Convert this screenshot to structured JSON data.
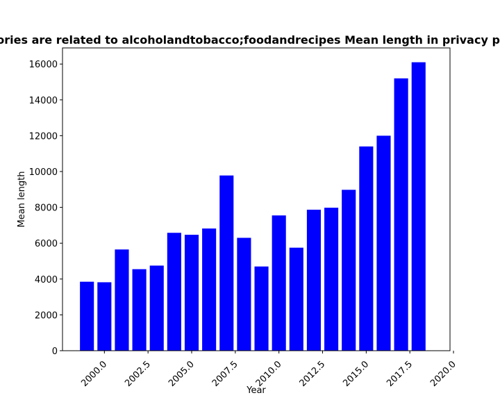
{
  "chart_data": {
    "type": "bar",
    "title": "Categories are related to alcoholandtobacco;foodandrecipes Mean length in privacy policies",
    "xlabel": "Year",
    "ylabel": "Mean length",
    "x": [
      1999,
      2000,
      2001,
      2002,
      2003,
      2004,
      2005,
      2006,
      2007,
      2008,
      2009,
      2010,
      2011,
      2012,
      2013,
      2014,
      2015,
      2016,
      2017,
      2018
    ],
    "values": [
      3850,
      3820,
      5650,
      4550,
      4750,
      6580,
      6470,
      6820,
      9780,
      6300,
      4700,
      7550,
      5750,
      7870,
      7980,
      8980,
      11400,
      12000,
      15200,
      16100
    ],
    "xlim": [
      1997.6,
      2019.8
    ],
    "ylim": [
      0,
      16900
    ],
    "xticks": [
      "2000.0",
      "2002.5",
      "2005.0",
      "2007.5",
      "2010.0",
      "2012.5",
      "2015.0",
      "2017.5",
      "2020.0"
    ],
    "xtick_values": [
      2000,
      2002.5,
      2005,
      2007.5,
      2010,
      2012.5,
      2015,
      2017.5,
      2020
    ],
    "yticks": [
      "0",
      "2000",
      "4000",
      "6000",
      "8000",
      "10000",
      "12000",
      "14000",
      "16000"
    ],
    "ytick_values": [
      0,
      2000,
      4000,
      6000,
      8000,
      10000,
      12000,
      14000,
      16000
    ],
    "bar_color": "#0000ff",
    "legend": "none",
    "grid": false
  }
}
